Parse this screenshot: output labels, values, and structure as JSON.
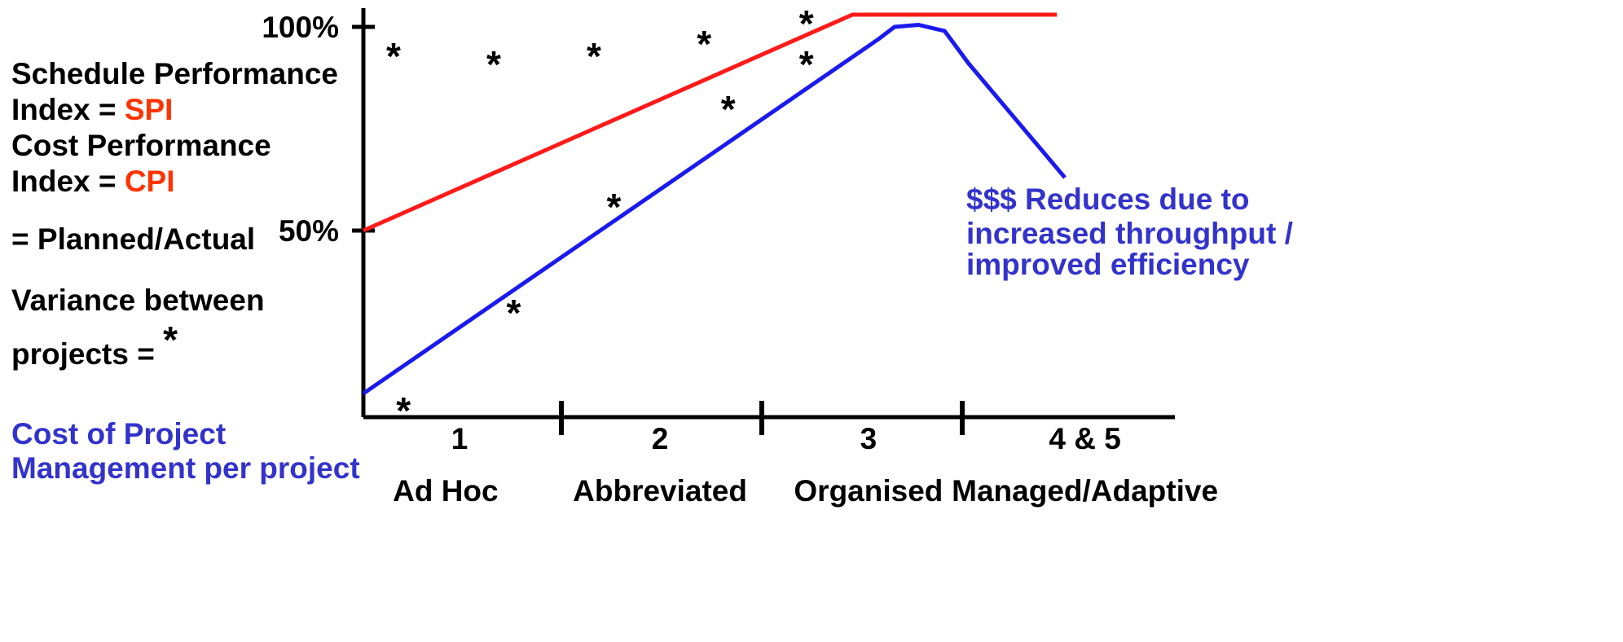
{
  "legend": {
    "spi_line1": "Schedule Performance",
    "spi_prefix": "Index = ",
    "spi_abbrev": "SPI",
    "cpi_line1": "Cost Performance",
    "cpi_prefix": "Index = ",
    "cpi_abbrev": "CPI",
    "ratio": "= Planned/Actual",
    "variance_line1": "Variance between",
    "variance_prefix": "projects = ",
    "variance_symbol": "*",
    "cost_line1": "Cost of Project",
    "cost_line2": "Management per project"
  },
  "annotation": {
    "line1": "$$$ Reduces due to",
    "line2": "increased throughput /",
    "line3": "improved efficiency"
  },
  "colors": {
    "spi_cpi": "#ff3300",
    "cost": "#3333cc",
    "red_line": "#ff1a1a",
    "blue_line": "#1a1aee"
  },
  "chart_data": {
    "type": "line",
    "title": "",
    "xlabel": "",
    "ylabel": "",
    "x_ticks": [
      {
        "number": "1",
        "name": "Ad Hoc"
      },
      {
        "number": "2",
        "name": "Abbreviated"
      },
      {
        "number": "3",
        "name": "Organised"
      },
      {
        "number": "4 & 5",
        "name": "Managed/Adaptive"
      }
    ],
    "x_range": [
      0,
      4
    ],
    "y_ticks": [
      "100%",
      "50%"
    ],
    "y_range": [
      0,
      105
    ],
    "series": [
      {
        "key": "performance_index",
        "color": "#ff1a1a",
        "points": [
          [
            0,
            50
          ],
          [
            2.44,
            103
          ],
          [
            3.46,
            103
          ]
        ]
      },
      {
        "key": "cost_per_project",
        "color": "#1a1aee",
        "points": [
          [
            0,
            10
          ],
          [
            2.57,
            97
          ],
          [
            2.65,
            100
          ],
          [
            2.77,
            100.5
          ],
          [
            2.9,
            99
          ],
          [
            3.02,
            91
          ],
          [
            3.5,
            63
          ]
        ]
      }
    ],
    "variance_points": [
      [
        0.15,
        94
      ],
      [
        0.65,
        92
      ],
      [
        1.15,
        94
      ],
      [
        1.7,
        97
      ],
      [
        2.21,
        102
      ],
      [
        2.21,
        92
      ],
      [
        1.82,
        81
      ],
      [
        1.25,
        57
      ],
      [
        0.75,
        31
      ],
      [
        0.2,
        7
      ]
    ]
  }
}
